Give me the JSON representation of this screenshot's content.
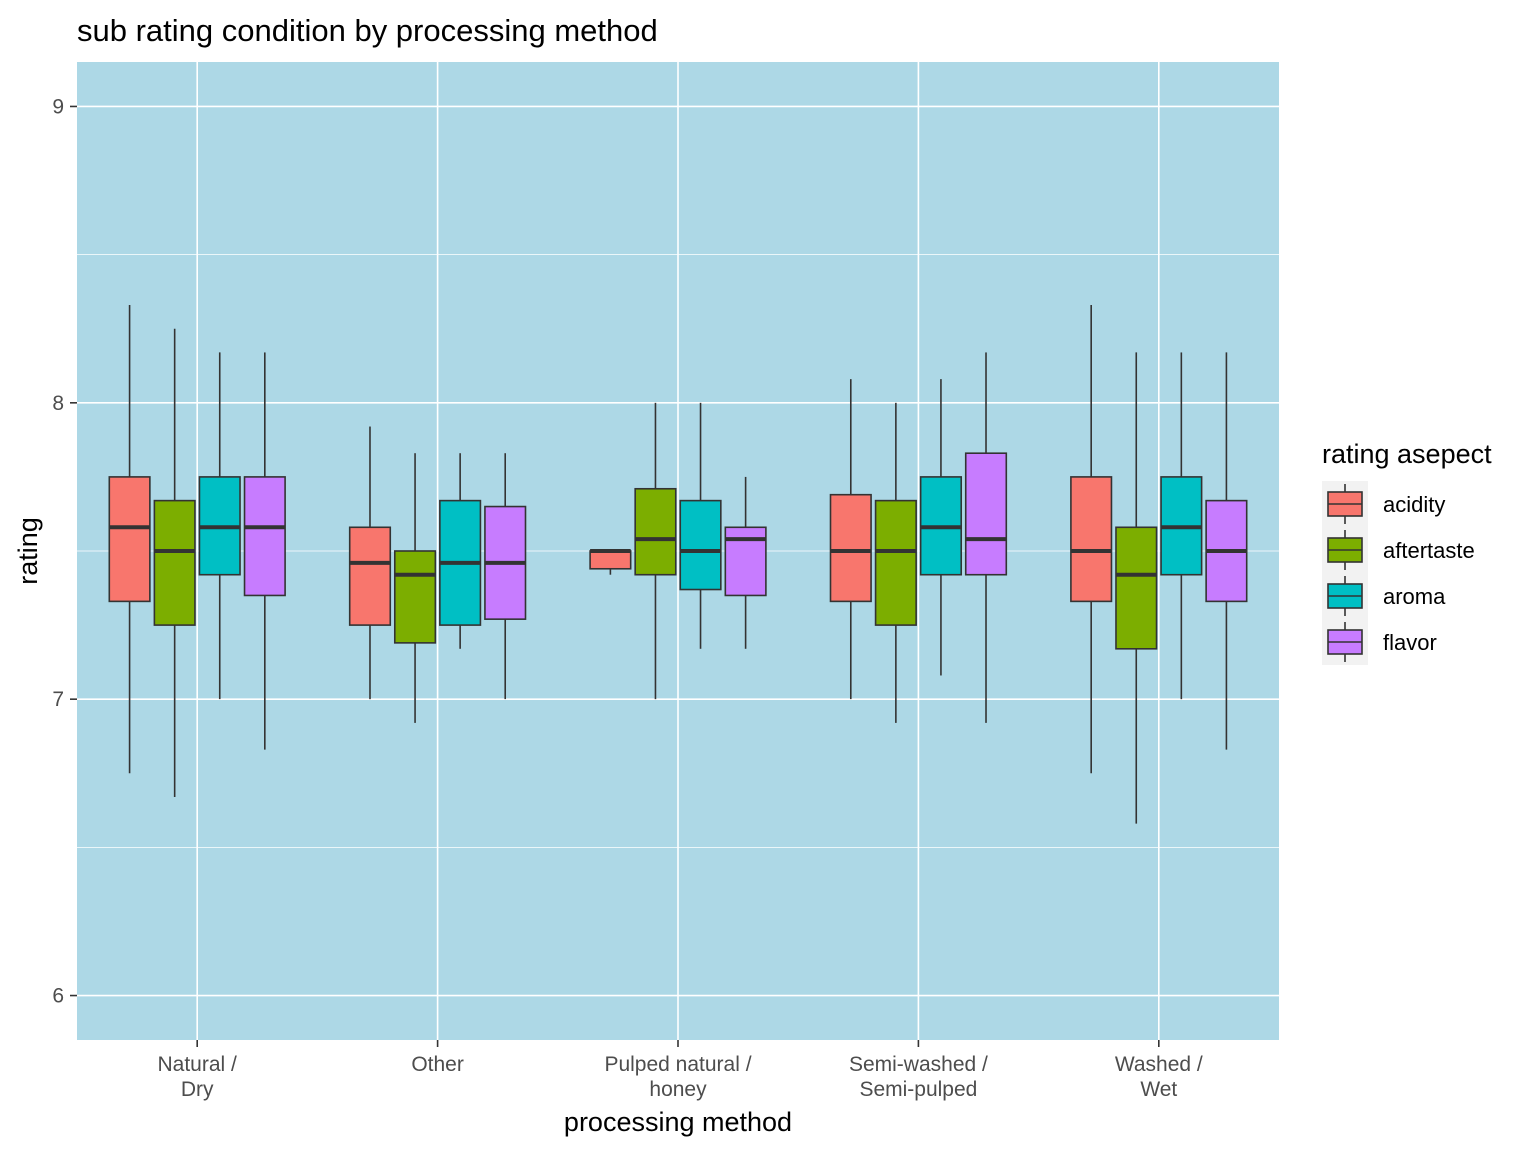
{
  "chart_data": {
    "type": "boxplot",
    "title": "sub rating condition by processing method",
    "xlabel": "processing method",
    "ylabel": "rating",
    "ylim": [
      5.85,
      9.15
    ],
    "yticks": [
      6,
      7,
      8,
      9
    ],
    "grid": true,
    "categories": [
      [
        "Natural /",
        "Dry"
      ],
      [
        "Other"
      ],
      [
        "Pulped natural /",
        "honey"
      ],
      [
        "Semi-washed /",
        "Semi-pulped"
      ],
      [
        "Washed /",
        "Wet"
      ]
    ],
    "legend": {
      "title": "rating asepect",
      "placement": "right"
    },
    "series": [
      {
        "name": "acidity",
        "color": "#F8766D",
        "boxes": [
          {
            "min": 6.75,
            "q1": 7.33,
            "median": 7.58,
            "q3": 7.75,
            "max": 8.33
          },
          {
            "min": 7.0,
            "q1": 7.25,
            "median": 7.46,
            "q3": 7.58,
            "max": 7.92
          },
          {
            "min": 7.42,
            "q1": 7.44,
            "median": 7.5,
            "q3": 7.5,
            "max": 7.5
          },
          {
            "min": 7.0,
            "q1": 7.33,
            "median": 7.5,
            "q3": 7.69,
            "max": 8.08
          },
          {
            "min": 6.75,
            "q1": 7.33,
            "median": 7.5,
            "q3": 7.75,
            "max": 8.33
          }
        ]
      },
      {
        "name": "aftertaste",
        "color": "#7CAE00",
        "boxes": [
          {
            "min": 6.67,
            "q1": 7.25,
            "median": 7.5,
            "q3": 7.67,
            "max": 8.25
          },
          {
            "min": 6.92,
            "q1": 7.19,
            "median": 7.42,
            "q3": 7.5,
            "max": 7.83
          },
          {
            "min": 7.0,
            "q1": 7.42,
            "median": 7.54,
            "q3": 7.71,
            "max": 8.0
          },
          {
            "min": 6.92,
            "q1": 7.25,
            "median": 7.5,
            "q3": 7.67,
            "max": 8.0
          },
          {
            "min": 6.58,
            "q1": 7.17,
            "median": 7.42,
            "q3": 7.58,
            "max": 8.17
          }
        ]
      },
      {
        "name": "aroma",
        "color": "#00BFC4",
        "boxes": [
          {
            "min": 7.0,
            "q1": 7.42,
            "median": 7.58,
            "q3": 7.75,
            "max": 8.17
          },
          {
            "min": 7.17,
            "q1": 7.25,
            "median": 7.46,
            "q3": 7.67,
            "max": 7.83
          },
          {
            "min": 7.17,
            "q1": 7.37,
            "median": 7.5,
            "q3": 7.67,
            "max": 8.0
          },
          {
            "min": 7.08,
            "q1": 7.42,
            "median": 7.58,
            "q3": 7.75,
            "max": 8.08
          },
          {
            "min": 7.0,
            "q1": 7.42,
            "median": 7.58,
            "q3": 7.75,
            "max": 8.17
          }
        ]
      },
      {
        "name": "flavor",
        "color": "#C77CFF",
        "boxes": [
          {
            "min": 6.83,
            "q1": 7.35,
            "median": 7.58,
            "q3": 7.75,
            "max": 8.17
          },
          {
            "min": 7.0,
            "q1": 7.27,
            "median": 7.46,
            "q3": 7.65,
            "max": 7.83
          },
          {
            "min": 7.17,
            "q1": 7.35,
            "median": 7.54,
            "q3": 7.58,
            "max": 7.75
          },
          {
            "min": 6.92,
            "q1": 7.42,
            "median": 7.54,
            "q3": 7.83,
            "max": 8.17
          },
          {
            "min": 6.83,
            "q1": 7.33,
            "median": 7.5,
            "q3": 7.67,
            "max": 8.17
          }
        ]
      }
    ],
    "colors": {
      "panel": "#ADD8E6",
      "grid": "#FFFFFF",
      "outline": "#333333",
      "tick_text": "#4D4D4D",
      "text": "#000000"
    }
  }
}
